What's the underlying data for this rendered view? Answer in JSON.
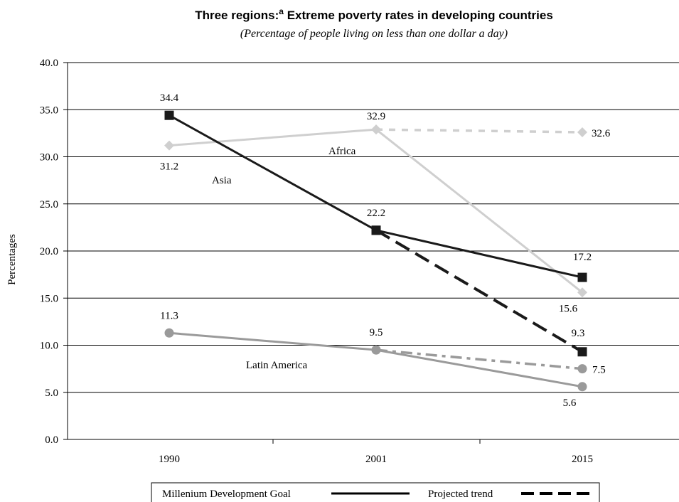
{
  "chart_data": {
    "type": "line",
    "title": "Three regions:",
    "title_superscript": "a",
    "title_rest": " Extreme poverty rates in developing countries",
    "subtitle": "(Percentage of people living on less than one dollar a day)",
    "xlabel": "",
    "ylabel": "Percentages",
    "ylim": [
      0,
      40
    ],
    "yticks": [
      "0.0",
      "5.0",
      "10.0",
      "15.0",
      "20.0",
      "25.0",
      "30.0",
      "35.0",
      "40.0"
    ],
    "categories": [
      "1990",
      "2001",
      "2015"
    ],
    "grid": "horizontal",
    "legend_position": "bottom",
    "series": [
      {
        "name": "Asia",
        "style": "goal",
        "color": "#1a1a1a",
        "marker": "square",
        "points": [
          {
            "x": "1990",
            "y": 34.4,
            "label": "34.4"
          },
          {
            "x": "2001",
            "y": 22.2,
            "label": "22.2"
          },
          {
            "x": "2015",
            "y": 17.2,
            "label": "17.2"
          }
        ]
      },
      {
        "name": "Asia",
        "style": "projected",
        "color": "#1a1a1a",
        "marker": "square",
        "points": [
          {
            "x": "2001",
            "y": 22.2,
            "label": ""
          },
          {
            "x": "2015",
            "y": 9.3,
            "label": "9.3"
          }
        ]
      },
      {
        "name": "Africa",
        "style": "goal",
        "color": "#cfcfcf",
        "marker": "diamond",
        "points": [
          {
            "x": "1990",
            "y": 31.2,
            "label": "31.2"
          },
          {
            "x": "2001",
            "y": 32.9,
            "label": "32.9"
          },
          {
            "x": "2015",
            "y": 15.6,
            "label": "15.6"
          }
        ]
      },
      {
        "name": "Africa",
        "style": "projected",
        "color": "#cfcfcf",
        "marker": "diamond",
        "points": [
          {
            "x": "2001",
            "y": 32.9,
            "label": ""
          },
          {
            "x": "2015",
            "y": 32.6,
            "label": "32.6"
          }
        ]
      },
      {
        "name": "Latin America",
        "style": "goal",
        "color": "#9a9a9a",
        "marker": "circle",
        "points": [
          {
            "x": "1990",
            "y": 11.3,
            "label": "11.3"
          },
          {
            "x": "2001",
            "y": 9.5,
            "label": "9.5"
          },
          {
            "x": "2015",
            "y": 5.6,
            "label": "5.6"
          }
        ]
      },
      {
        "name": "Latin America",
        "style": "projected",
        "color": "#9a9a9a",
        "marker": "circle",
        "points": [
          {
            "x": "2001",
            "y": 9.5,
            "label": ""
          },
          {
            "x": "2015",
            "y": 7.5,
            "label": "7.5"
          }
        ]
      }
    ],
    "region_labels": [
      "Asia",
      "Africa",
      "Latin America"
    ],
    "legend": [
      {
        "label": "Millenium Development Goal",
        "style": "goal"
      },
      {
        "label": "Projected trend",
        "style": "projected"
      }
    ]
  }
}
